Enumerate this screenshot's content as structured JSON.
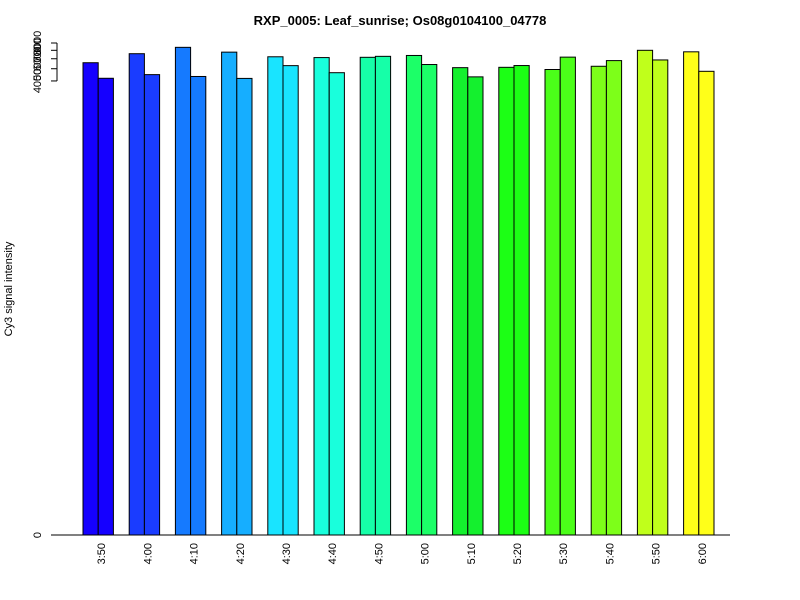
{
  "chart_data": {
    "type": "bar",
    "title": "RXP_0005: Leaf_sunrise; Os08g0104100_04778",
    "xlabel": "",
    "ylabel": "Cy3 signal intensity",
    "y_scale": "log",
    "ylim": [
      0,
      8000
    ],
    "y_ticks": [
      0,
      4000,
      5000,
      6000,
      7000,
      8000
    ],
    "grid": false,
    "legend": "none",
    "categories": [
      "3:50",
      "4:00",
      "4:10",
      "4:20",
      "4:30",
      "4:40",
      "4:50",
      "5:00",
      "5:10",
      "5:20",
      "5:30",
      "5:40",
      "5:50",
      "6:00"
    ],
    "colors": [
      "#1500FF",
      "#1A3CFF",
      "#157AFF",
      "#16AEFF",
      "#19E4FF",
      "#19FFDC",
      "#16FFA8",
      "#1CFF68",
      "#14F02E",
      "#1CFF15",
      "#4BFF19",
      "#7DFF19",
      "#C0FF1B",
      "#FFFF19"
    ],
    "series": [
      {
        "values": [
          5580,
          6580,
          7390,
          6770,
          6220,
          6130,
          6160,
          6370,
          5100,
          5130,
          4930,
          5230,
          7000,
          6810
        ]
      },
      {
        "values": [
          4200,
          4490,
          4340,
          4190,
          5290,
          4650,
          6270,
          5400,
          4310,
          5300,
          6180,
          5800,
          5870,
          4770
        ]
      }
    ]
  }
}
